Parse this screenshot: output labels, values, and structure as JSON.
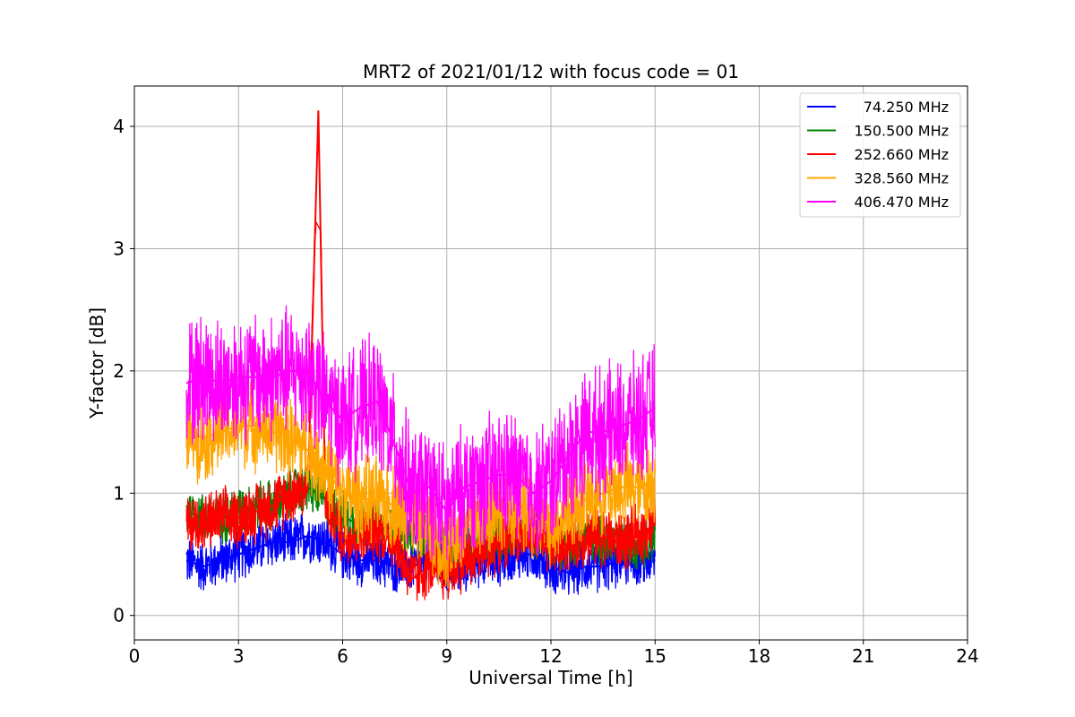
{
  "chart_data": {
    "type": "line",
    "title": "MRT2 of 2021/01/12 with focus code = 01",
    "xlabel": "Universal Time [h]",
    "ylabel": "Y-factor [dB]",
    "xlim": [
      0,
      24
    ],
    "ylim": [
      -0.2,
      4.33
    ],
    "x_ticks": [
      0,
      3,
      6,
      9,
      12,
      15,
      18,
      21,
      24
    ],
    "y_ticks": [
      0,
      1,
      2,
      3,
      4
    ],
    "grid": true,
    "legend_position": "top-right",
    "series": [
      {
        "name": "74.250 MHz",
        "color": "#0000ff",
        "x": [
          1.5,
          2.0,
          2.5,
          3.0,
          3.5,
          4.0,
          4.5,
          5.0,
          5.5,
          6.0,
          6.5,
          7.0,
          7.5,
          8.0,
          8.5,
          9.0,
          9.5,
          10.0,
          10.5,
          11.0,
          11.5,
          12.0,
          12.5,
          13.0,
          13.5,
          14.0,
          14.5,
          15.0
        ],
        "values": [
          0.45,
          0.4,
          0.45,
          0.5,
          0.55,
          0.6,
          0.6,
          0.65,
          0.6,
          0.5,
          0.45,
          0.45,
          0.4,
          0.4,
          0.45,
          0.4,
          0.4,
          0.45,
          0.45,
          0.5,
          0.5,
          0.4,
          0.35,
          0.4,
          0.4,
          0.45,
          0.45,
          0.45
        ]
      },
      {
        "name": "150.500 MHz",
        "color": "#008000",
        "x": [
          1.5,
          2.0,
          2.5,
          3.0,
          3.5,
          4.0,
          4.5,
          5.0,
          5.5,
          6.0,
          6.5,
          7.0,
          7.5,
          8.0,
          8.5,
          9.0,
          9.5,
          10.0,
          10.5,
          11.0,
          11.5,
          12.0,
          12.5,
          13.0,
          13.5,
          14.0,
          14.5,
          15.0
        ],
        "values": [
          0.85,
          0.8,
          0.8,
          0.85,
          0.9,
          0.9,
          1.0,
          1.05,
          0.95,
          0.8,
          0.75,
          0.75,
          0.7,
          0.65,
          0.7,
          0.6,
          0.55,
          0.6,
          0.65,
          0.7,
          0.7,
          0.6,
          0.6,
          0.65,
          0.6,
          0.6,
          0.6,
          0.65
        ]
      },
      {
        "name": "252.660 MHz",
        "color": "#ff0000",
        "x": [
          1.5,
          2.0,
          2.5,
          3.0,
          3.5,
          4.0,
          4.5,
          5.0,
          5.3,
          5.5,
          6.0,
          6.5,
          7.0,
          7.5,
          8.0,
          8.5,
          9.0,
          9.5,
          10.0,
          10.5,
          11.0,
          11.5,
          12.0,
          12.5,
          13.0,
          13.5,
          14.0,
          14.5,
          15.0
        ],
        "values": [
          0.75,
          0.75,
          0.8,
          0.8,
          0.85,
          0.9,
          1.0,
          1.05,
          4.13,
          0.95,
          0.65,
          0.65,
          0.7,
          0.6,
          0.3,
          0.4,
          0.35,
          0.45,
          0.5,
          0.6,
          0.7,
          0.65,
          0.55,
          0.6,
          0.65,
          0.65,
          0.6,
          0.65,
          0.75
        ]
      },
      {
        "name": "328.560 MHz",
        "color": "#ffa500",
        "x": [
          1.5,
          2.0,
          2.5,
          3.0,
          3.5,
          4.0,
          4.5,
          5.0,
          5.5,
          6.0,
          6.5,
          7.0,
          7.5,
          8.0,
          8.5,
          9.0,
          9.5,
          10.0,
          10.5,
          11.0,
          11.5,
          12.0,
          12.5,
          13.0,
          13.5,
          14.0,
          14.5,
          15.0
        ],
        "values": [
          1.5,
          1.45,
          1.5,
          1.55,
          1.55,
          1.5,
          1.45,
          1.35,
          1.2,
          1.0,
          0.95,
          0.95,
          0.9,
          0.85,
          0.7,
          0.55,
          0.7,
          0.8,
          0.9,
          0.85,
          0.8,
          0.75,
          0.85,
          0.95,
          1.0,
          1.05,
          1.05,
          1.1
        ]
      },
      {
        "name": "406.470 MHz",
        "color": "#ff00ff",
        "x": [
          1.5,
          2.0,
          2.5,
          3.0,
          3.5,
          4.0,
          4.5,
          5.0,
          5.5,
          6.0,
          6.5,
          7.0,
          7.5,
          8.0,
          8.5,
          9.0,
          9.5,
          10.0,
          10.5,
          11.0,
          11.5,
          12.0,
          12.5,
          13.0,
          13.5,
          14.0,
          14.5,
          15.0
        ],
        "values": [
          1.9,
          1.95,
          1.9,
          1.95,
          1.95,
          1.95,
          2.0,
          2.0,
          1.75,
          1.6,
          1.7,
          1.75,
          1.4,
          1.0,
          1.05,
          0.85,
          1.05,
          1.1,
          1.15,
          1.15,
          1.0,
          1.1,
          1.3,
          1.5,
          1.5,
          1.55,
          1.6,
          1.7
        ]
      }
    ]
  }
}
